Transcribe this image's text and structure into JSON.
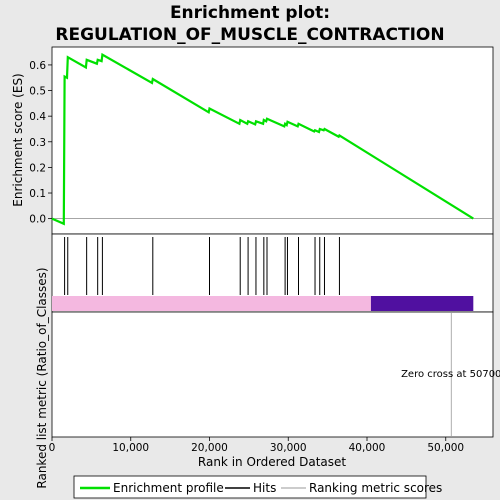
{
  "chart_data": {
    "type": "line",
    "title_line1": "Enrichment plot:",
    "title_line2": "REGULATION_OF_MUSCLE_CONTRACTION",
    "ylabel_top": "Enrichment score (ES)",
    "ylabel_bottom": "Ranked list metric (Ratio_of_Classes)",
    "xlabel": "Rank in Ordered Dataset",
    "xlim": [
      0,
      56000
    ],
    "ylim": [
      -0.06,
      0.67
    ],
    "x_ticks": [
      0,
      10000,
      20000,
      30000,
      40000,
      50000
    ],
    "x_tick_labels": [
      "0",
      "10,000",
      "20,000",
      "30,000",
      "40,000",
      "50,000"
    ],
    "y_ticks": [
      0.0,
      0.1,
      0.2,
      0.3,
      0.4,
      0.5,
      0.6
    ],
    "y_tick_labels": [
      "0.0",
      "0.1",
      "0.2",
      "0.3",
      "0.4",
      "0.5",
      "0.6"
    ],
    "series": [
      {
        "name": "Enrichment profile",
        "color": "#00e000",
        "points": [
          [
            0,
            0.0
          ],
          [
            1500,
            -0.02
          ],
          [
            1600,
            0.555
          ],
          [
            1900,
            0.55
          ],
          [
            2000,
            0.63
          ],
          [
            4300,
            0.59
          ],
          [
            4400,
            0.62
          ],
          [
            5700,
            0.605
          ],
          [
            5800,
            0.62
          ],
          [
            6300,
            0.615
          ],
          [
            6400,
            0.64
          ],
          [
            12700,
            0.53
          ],
          [
            12800,
            0.545
          ],
          [
            19900,
            0.415
          ],
          [
            20000,
            0.43
          ],
          [
            23800,
            0.37
          ],
          [
            23900,
            0.385
          ],
          [
            24800,
            0.37
          ],
          [
            24900,
            0.38
          ],
          [
            25800,
            0.368
          ],
          [
            25900,
            0.38
          ],
          [
            26800,
            0.37
          ],
          [
            26900,
            0.385
          ],
          [
            27200,
            0.38
          ],
          [
            27300,
            0.39
          ],
          [
            29500,
            0.36
          ],
          [
            29600,
            0.37
          ],
          [
            29800,
            0.365
          ],
          [
            29900,
            0.378
          ],
          [
            31200,
            0.36
          ],
          [
            31300,
            0.37
          ],
          [
            33300,
            0.34
          ],
          [
            33400,
            0.345
          ],
          [
            33900,
            0.338
          ],
          [
            34000,
            0.35
          ],
          [
            34500,
            0.345
          ],
          [
            34600,
            0.35
          ],
          [
            36400,
            0.32
          ],
          [
            36500,
            0.325
          ],
          [
            53500,
            0.0
          ]
        ]
      }
    ],
    "hits": [
      1600,
      2000,
      4400,
      5800,
      6400,
      12800,
      20000,
      23900,
      24900,
      25900,
      26900,
      27300,
      29600,
      29900,
      31300,
      33400,
      34000,
      34600,
      36500
    ],
    "metric_bar": {
      "positive_color": "#f4b8e0",
      "negative_color": "#5010a0",
      "positive_end": 40500,
      "negative_end": 53500
    },
    "zero_cross_rank": 50700,
    "annotation": "Zero cross at 50700",
    "legend": [
      {
        "label": "Enrichment profile",
        "color": "#00e000"
      },
      {
        "label": "Hits",
        "color": "#000000"
      },
      {
        "label": "Ranking metric scores",
        "color": "#bbbbbb"
      }
    ]
  }
}
